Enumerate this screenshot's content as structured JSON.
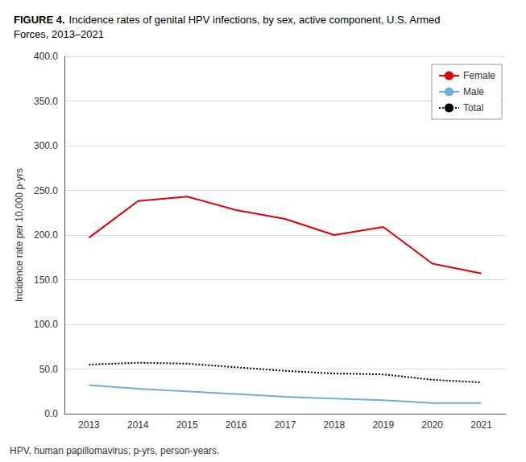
{
  "chart_data": {
    "type": "line",
    "title": "FIGURE 4.",
    "subtitle": "Incidence rates of genital HPV infections, by sex, active component, U.S. Armed\nForces, 2013–2021",
    "annotations": [
      "HPV, human papillomavirus; p-yrs, person-years."
    ],
    "categories": [
      "2013",
      "2014",
      "2015",
      "2016",
      "2017",
      "2018",
      "2019",
      "2020",
      "2021"
    ],
    "series": [
      {
        "name": "Female",
        "color": "#e00000",
        "line_style": "solid",
        "values": [
          197,
          238,
          243,
          228,
          218,
          200,
          209,
          168,
          157
        ]
      },
      {
        "name": "Male",
        "color": "#6baed6",
        "line_style": "solid",
        "values": [
          32,
          28,
          25,
          22,
          19,
          17,
          15,
          12,
          12
        ]
      },
      {
        "name": "Total",
        "color": "#000000",
        "line_style": "dotted",
        "values": [
          55,
          57,
          56,
          52,
          48,
          45,
          44,
          38,
          35
        ]
      }
    ],
    "ylabel": "Incidence rate per 10,000 p-yrs",
    "ylim": [
      0,
      400
    ],
    "yticks": [
      {
        "value": 0,
        "label": "0.0"
      },
      {
        "value": 50,
        "label": "50.0"
      },
      {
        "value": 100,
        "label": "100.0"
      },
      {
        "value": 150,
        "label": "150.0"
      },
      {
        "value": 200,
        "label": "200.0"
      },
      {
        "value": 250,
        "label": "250.0"
      },
      {
        "value": 300,
        "label": "300.0"
      },
      {
        "value": 350,
        "label": "350.0"
      },
      {
        "value": 400,
        "label": "400.0"
      }
    ],
    "grid": true,
    "legend": "upper right"
  }
}
